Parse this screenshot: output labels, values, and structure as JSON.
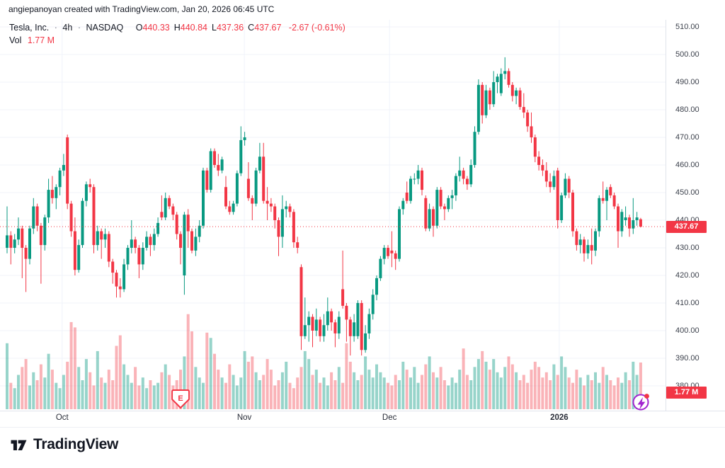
{
  "attribution": "angiepanoyan created with TradingView.com, Jan 20, 2026 06:45 UTC",
  "legend": {
    "symbol_title": "Tesla, Inc.",
    "separator": "·",
    "interval": "4h",
    "exchange": "NASDAQ",
    "ohlc": [
      {
        "label": "O",
        "value": "440.33"
      },
      {
        "label": "H",
        "value": "440.84"
      },
      {
        "label": "L",
        "value": "437.36"
      },
      {
        "label": "C",
        "value": "437.67"
      }
    ],
    "change": "-2.67 (-0.61%)",
    "vol_label": "Vol",
    "vol_value": "1.77 M"
  },
  "price_tag": "437.67",
  "volume_tag": "1.77 M",
  "footer": {
    "logo_text": "TradingView"
  },
  "colors": {
    "up": "#089981",
    "down": "#f23645",
    "volume_up": "rgba(8,153,129,0.42)",
    "volume_down": "rgba(242,54,69,0.38)",
    "grid": "#f0f3fa",
    "last_price_line": "#f23645",
    "tag_bg": "#f23645",
    "earnings": "#f23645",
    "bolt": "#a224cf",
    "bolt_dot": "#f23645"
  },
  "chart_data": {
    "type": "candlestick+volume",
    "title": "Tesla, Inc. · 4h · NASDAQ",
    "last_price": 437.67,
    "last_volume_m": 1.77,
    "price_axis": {
      "max": 510,
      "min": 380,
      "tick_values": [
        510,
        500,
        490,
        480,
        470,
        460,
        450,
        440,
        430,
        420,
        410,
        400,
        390,
        380
      ],
      "tick_labels": [
        "510.00",
        "500.00",
        "490.00",
        "480.00",
        "470.00",
        "460.00",
        "450.00",
        "440.00",
        "430.00",
        "420.00",
        "410.00",
        "400.00",
        "390.00",
        "380.00"
      ]
    },
    "time_axis": {
      "markers": [
        {
          "label": "Oct",
          "index": 14.6,
          "bold": false
        },
        {
          "label": "Nov",
          "index": 62.9,
          "bold": false
        },
        {
          "label": "Dec",
          "index": 101.4,
          "bold": false
        },
        {
          "label": "2026",
          "index": 146.4,
          "bold": true
        }
      ]
    },
    "markers": {
      "earnings_index": 46,
      "earnings_label": "E"
    },
    "volume_axis": {
      "max_m": 3.7
    },
    "candles": [
      [
        430,
        445,
        428,
        434.5
      ],
      [
        434.5,
        436,
        424,
        430
      ],
      [
        430,
        435,
        428,
        433
      ],
      [
        433,
        441,
        431,
        437
      ],
      [
        437,
        438,
        419,
        430
      ],
      [
        430,
        431,
        414,
        426
      ],
      [
        426,
        438,
        424,
        437
      ],
      [
        437,
        448,
        435,
        445
      ],
      [
        445,
        446,
        436,
        438
      ],
      [
        438,
        439,
        417,
        431
      ],
      [
        431,
        442,
        429,
        441
      ],
      [
        441,
        455,
        439,
        451
      ],
      [
        451,
        456,
        446,
        448
      ],
      [
        448,
        453,
        444,
        452
      ],
      [
        452,
        459,
        449,
        458
      ],
      [
        458,
        464,
        456,
        460
      ],
      [
        470,
        471,
        444,
        446
      ],
      [
        446,
        447,
        434,
        436
      ],
      [
        436,
        441,
        420,
        422
      ],
      [
        422,
        433,
        421,
        431
      ],
      [
        431,
        448,
        430,
        447
      ],
      [
        447,
        454,
        445,
        453
      ],
      [
        453,
        455,
        450,
        452
      ],
      [
        452,
        453,
        428,
        431
      ],
      [
        431,
        438,
        429,
        436
      ],
      [
        436,
        437,
        426,
        433
      ],
      [
        433,
        437,
        430,
        435
      ],
      [
        435,
        436,
        423,
        425
      ],
      [
        425,
        426,
        417,
        421
      ],
      [
        421,
        422,
        412,
        416
      ],
      [
        416,
        419,
        412,
        415
      ],
      [
        415,
        426,
        414,
        424
      ],
      [
        424,
        431,
        422,
        430
      ],
      [
        430,
        440,
        428,
        433
      ],
      [
        433,
        434,
        428,
        430
      ],
      [
        430,
        431,
        419,
        424
      ],
      [
        424,
        432,
        422,
        430
      ],
      [
        430,
        436,
        429,
        434
      ],
      [
        434,
        435,
        427,
        431
      ],
      [
        431,
        437,
        429,
        435
      ],
      [
        435,
        441,
        434,
        439
      ],
      [
        443,
        449,
        440,
        441
      ],
      [
        441,
        450,
        440,
        448
      ],
      [
        448,
        449,
        444,
        445
      ],
      [
        445,
        446,
        440,
        442
      ],
      [
        442,
        443,
        433,
        435
      ],
      [
        435,
        436,
        424,
        430
      ],
      [
        420,
        443,
        413,
        442
      ],
      [
        442,
        444,
        430,
        436
      ],
      [
        436,
        437,
        428,
        429
      ],
      [
        429,
        437,
        427,
        434
      ],
      [
        434,
        440,
        432,
        438
      ],
      [
        438,
        459,
        437,
        458
      ],
      [
        458,
        459,
        450,
        451
      ],
      [
        451,
        466,
        450,
        465
      ],
      [
        465,
        466,
        459,
        460
      ],
      [
        460,
        464,
        456,
        458
      ],
      [
        458,
        463,
        457,
        462
      ],
      [
        452,
        456,
        444,
        445
      ],
      [
        445,
        447,
        442,
        443
      ],
      [
        443,
        447,
        442,
        446
      ],
      [
        446,
        458,
        445,
        457
      ],
      [
        457,
        474,
        456,
        469
      ],
      [
        469,
        472,
        467,
        470
      ],
      [
        455,
        461,
        447,
        448
      ],
      [
        448,
        449,
        440,
        446
      ],
      [
        446,
        459,
        445,
        458
      ],
      [
        458,
        468,
        457,
        463
      ],
      [
        463,
        468,
        446,
        447
      ],
      [
        447,
        452,
        440,
        446
      ],
      [
        446,
        448,
        443,
        445
      ],
      [
        445,
        446,
        437,
        440
      ],
      [
        440,
        441,
        427,
        434
      ],
      [
        434,
        449,
        430,
        444
      ],
      [
        444,
        447,
        441,
        445
      ],
      [
        445,
        446,
        441,
        443
      ],
      [
        443,
        444,
        430,
        432
      ],
      [
        432,
        434,
        428,
        430
      ],
      [
        423,
        424,
        393,
        398
      ],
      [
        398,
        412,
        397,
        402
      ],
      [
        402,
        407,
        396,
        405
      ],
      [
        405,
        406,
        394,
        400
      ],
      [
        400,
        408,
        398,
        404
      ],
      [
        404,
        405,
        396,
        398
      ],
      [
        398,
        406,
        396,
        402
      ],
      [
        402,
        412,
        400,
        407
      ],
      [
        407,
        408,
        400,
        403
      ],
      [
        403,
        404,
        394,
        399
      ],
      [
        399,
        407,
        397,
        405
      ],
      [
        415,
        429,
        408,
        409
      ],
      [
        409,
        410,
        396,
        404
      ],
      [
        404,
        405,
        391,
        398
      ],
      [
        398,
        406,
        396,
        403
      ],
      [
        398,
        411,
        397,
        410
      ],
      [
        410,
        411,
        391,
        393
      ],
      [
        393,
        402,
        392,
        399
      ],
      [
        399,
        408,
        397,
        406
      ],
      [
        406,
        415,
        404,
        413
      ],
      [
        413,
        420,
        411,
        419
      ],
      [
        419,
        427,
        418,
        426
      ],
      [
        426,
        431,
        424,
        430
      ],
      [
        430,
        431,
        426,
        427
      ],
      [
        429,
        436,
        423,
        428
      ],
      [
        428,
        429,
        422,
        426
      ],
      [
        426,
        445,
        425,
        444
      ],
      [
        444,
        448,
        442,
        447
      ],
      [
        450,
        454,
        446,
        447
      ],
      [
        447,
        456,
        446,
        455
      ],
      [
        455,
        457,
        453,
        455
      ],
      [
        455,
        460,
        453,
        458
      ],
      [
        458,
        459,
        449,
        451
      ],
      [
        448,
        449,
        436,
        437
      ],
      [
        437,
        446,
        436,
        444
      ],
      [
        444,
        445,
        434,
        438
      ],
      [
        438,
        452,
        437,
        451
      ],
      [
        451,
        452,
        444,
        445
      ],
      [
        445,
        446,
        440,
        444
      ],
      [
        444,
        449,
        443,
        448
      ],
      [
        448,
        451,
        444,
        449
      ],
      [
        449,
        457,
        447,
        456
      ],
      [
        456,
        463,
        454,
        458
      ],
      [
        458,
        459,
        453,
        455
      ],
      [
        455,
        456,
        451,
        453
      ],
      [
        453,
        462,
        452,
        460
      ],
      [
        460,
        474,
        459,
        472
      ],
      [
        472,
        491,
        471,
        489
      ],
      [
        489,
        490,
        475,
        478
      ],
      [
        478,
        489,
        477,
        487
      ],
      [
        487,
        488,
        480,
        482
      ],
      [
        482,
        494,
        481,
        490
      ],
      [
        490,
        493,
        486,
        492
      ],
      [
        486,
        495,
        485,
        493
      ],
      [
        493,
        499,
        491,
        494
      ],
      [
        494,
        495,
        488,
        489
      ],
      [
        489,
        490,
        483,
        485
      ],
      [
        485,
        488,
        482,
        487
      ],
      [
        487,
        488,
        480,
        481
      ],
      [
        481,
        486,
        477,
        479
      ],
      [
        479,
        480,
        472,
        474
      ],
      [
        474,
        479,
        468,
        470
      ],
      [
        470,
        471,
        461,
        463
      ],
      [
        463,
        465,
        458,
        460
      ],
      [
        460,
        462,
        456,
        458
      ],
      [
        458,
        461,
        452,
        454
      ],
      [
        454,
        457,
        450,
        452
      ],
      [
        452,
        458,
        451,
        456
      ],
      [
        458,
        459,
        437,
        440
      ],
      [
        440,
        450,
        439,
        449
      ],
      [
        449,
        457,
        448,
        455
      ],
      [
        455,
        456,
        448,
        450
      ],
      [
        450,
        451,
        434,
        436
      ],
      [
        436,
        437,
        429,
        431
      ],
      [
        431,
        435,
        428,
        433
      ],
      [
        433,
        434,
        425,
        428
      ],
      [
        428,
        433,
        426,
        431
      ],
      [
        431,
        437,
        424,
        429
      ],
      [
        429,
        437,
        427,
        436
      ],
      [
        436,
        449,
        434,
        448
      ],
      [
        448,
        454,
        446,
        447
      ],
      [
        447,
        452,
        440,
        451
      ],
      [
        452,
        453,
        448,
        449
      ],
      [
        449,
        450,
        444,
        445
      ],
      [
        445,
        446,
        430,
        436
      ],
      [
        436,
        444,
        434,
        443
      ],
      [
        440,
        445,
        438,
        441
      ],
      [
        441,
        442,
        434,
        437
      ],
      [
        437,
        448,
        435,
        440
      ],
      [
        440,
        443,
        438,
        441
      ],
      [
        440.33,
        440.84,
        437.36,
        437.67
      ]
    ],
    "volumes_m": [
      2.5,
      1.0,
      0.8,
      1.3,
      1.6,
      1.9,
      0.9,
      1.4,
      1.1,
      1.7,
      1.2,
      2.1,
      1.5,
      1.0,
      0.8,
      1.3,
      1.8,
      3.3,
      3.1,
      1.6,
      1.1,
      1.9,
      1.4,
      0.9,
      2.2,
      1.2,
      1.0,
      1.5,
      1.1,
      2.4,
      2.8,
      1.7,
      1.3,
      1.0,
      1.6,
      0.9,
      1.2,
      0.8,
      1.1,
      0.9,
      1.0,
      1.4,
      1.7,
      1.3,
      0.9,
      1.1,
      1.5,
      2.0,
      3.6,
      2.95,
      1.6,
      1.2,
      1.0,
      2.9,
      2.7,
      2.1,
      1.5,
      1.2,
      1.0,
      1.7,
      1.3,
      0.9,
      1.2,
      2.2,
      1.8,
      2.0,
      1.4,
      1.1,
      1.3,
      1.9,
      1.5,
      0.9,
      1.1,
      1.4,
      1.8,
      1.0,
      0.8,
      1.2,
      1.6,
      2.2,
      1.9,
      1.3,
      1.5,
      1.0,
      1.2,
      0.9,
      1.4,
      1.1,
      1.6,
      1.0,
      2.5,
      1.8,
      1.4,
      1.1,
      1.3,
      2.0,
      1.5,
      1.2,
      1.7,
      1.4,
      1.2,
      1.0,
      0.9,
      1.3,
      1.1,
      1.8,
      1.5,
      1.2,
      1.6,
      1.0,
      1.3,
      1.7,
      2.0,
      1.4,
      1.2,
      1.6,
      1.1,
      0.9,
      1.2,
      1.0,
      1.5,
      2.3,
      1.3,
      1.1,
      1.6,
      1.9,
      2.2,
      1.8,
      1.5,
      1.9,
      1.4,
      1.2,
      1.6,
      2.0,
      1.7,
      1.4,
      1.1,
      1.3,
      1.0,
      1.5,
      1.8,
      1.6,
      1.2,
      1.4,
      1.1,
      1.7,
      1.3,
      2.0,
      1.6,
      1.2,
      1.0,
      1.5,
      1.2,
      0.9,
      1.3,
      1.1,
      1.4,
      1.0,
      1.6,
      1.3,
      1.1,
      0.9,
      1.2,
      1.0,
      1.4,
      1.1,
      1.8,
      1.3,
      1.77
    ]
  }
}
